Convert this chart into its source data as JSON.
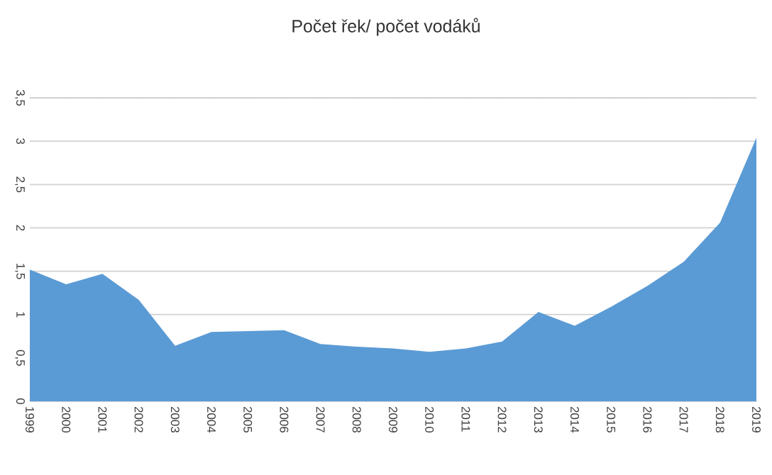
{
  "chart_data": {
    "type": "area",
    "title": "Počet řek/ počet vodáků",
    "categories": [
      "1999",
      "2000",
      "2001",
      "2002",
      "2003",
      "2004",
      "2005",
      "2006",
      "2007",
      "2008",
      "2009",
      "2010",
      "2011",
      "2012",
      "2013",
      "2014",
      "2015",
      "2016",
      "2017",
      "2018",
      "2019"
    ],
    "series": [
      {
        "color": "#5b9bd5",
        "values": [
          1.52,
          1.35,
          1.47,
          1.17,
          0.64,
          0.8,
          0.81,
          0.82,
          0.66,
          0.63,
          0.61,
          0.57,
          0.61,
          0.69,
          1.03,
          0.87,
          1.09,
          1.33,
          1.61,
          2.06,
          3.04
        ]
      }
    ],
    "ylim": [
      0,
      3.5
    ],
    "yticks": [
      0,
      {
        "value": 0.5,
        "label": "0,5"
      },
      1,
      {
        "value": 1.5,
        "label": "1,5"
      },
      2,
      {
        "value": 2.5,
        "label": "2,5"
      },
      3,
      {
        "value": 3.5,
        "label": "3,5"
      }
    ],
    "grid": "y"
  }
}
